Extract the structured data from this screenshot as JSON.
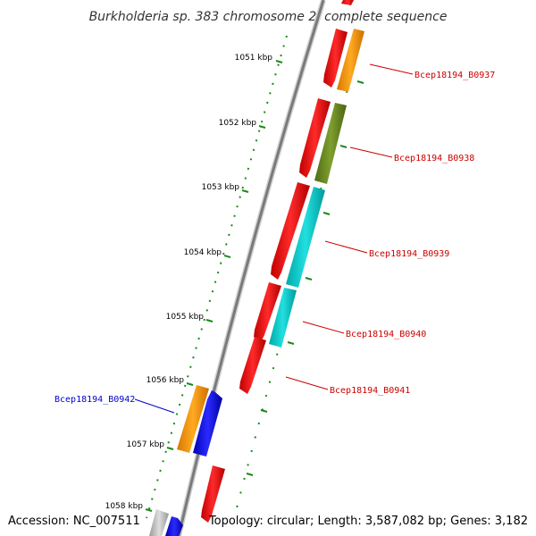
{
  "title": "Burkholderia sp. 383 chromosome 2, complete sequence",
  "footer": {
    "accession": "Accession: NC_007511",
    "summary": "Topology: circular; Length: 3,587,082 bp; Genes: 3,182"
  },
  "scale_labels": [
    "1051 kbp",
    "1052 kbp",
    "1053 kbp",
    "1054 kbp",
    "1055 kbp",
    "1056 kbp",
    "1057 kbp",
    "1058 kbp"
  ],
  "gene_labels": [
    {
      "text": "Bcep18194_B0937",
      "color": "#cc0000"
    },
    {
      "text": "Bcep18194_B0938",
      "color": "#cc0000"
    },
    {
      "text": "Bcep18194_B0939",
      "color": "#cc0000"
    },
    {
      "text": "Bcep18194_B0940",
      "color": "#cc0000"
    },
    {
      "text": "Bcep18194_B0941",
      "color": "#cc0000"
    },
    {
      "text": "Bcep18194_B0942",
      "color": "#0000cc"
    }
  ],
  "colors": {
    "backbone": "#808080",
    "tick": "#1a8a1a",
    "red": "#ff0000",
    "orange": "#ff9900",
    "olive": "#6b8e23",
    "cyan": "#00cccc",
    "blue": "#0000ff",
    "grey": "#bbbbbb"
  }
}
